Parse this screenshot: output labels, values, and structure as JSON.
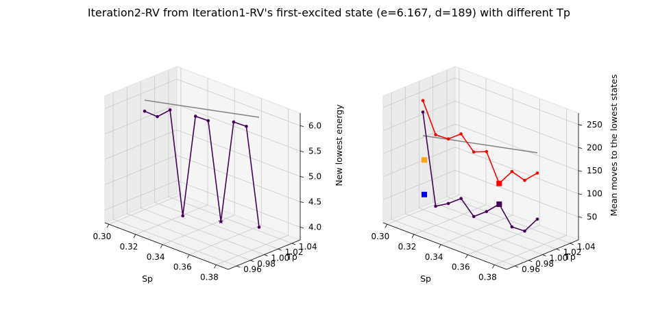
{
  "title": "Iteration2-RV from Iteration1-RV's first-excited state (e=6.167, d=189)  with different Tp",
  "chart_data": [
    {
      "type": "line",
      "projection": "3d",
      "xlabel": "Sp",
      "ylabel": "Tp",
      "zlabel": "New lowest energy",
      "x_ticks": [
        "0.30",
        "0.32",
        "0.34",
        "0.36",
        "0.38"
      ],
      "y_ticks": [
        "0.96",
        "0.98",
        "1.00",
        "1.02",
        "1.04"
      ],
      "z_ticks": [
        "4.0",
        "4.5",
        "5.0",
        "5.5",
        "6.0"
      ],
      "series": [
        {
          "color": "#440154",
          "x": [
            0.3,
            0.3,
            0.3,
            0.3,
            0.3,
            0.3,
            0.3,
            0.3,
            0.3,
            0.3
          ],
          "y": [
            0.96,
            0.97,
            0.98,
            0.99,
            1.0,
            1.01,
            1.02,
            1.03,
            1.04,
            1.05
          ],
          "z": [
            5.95,
            5.88,
            6.05,
            4.0,
            6.0,
            5.95,
            4.0,
            6.0,
            5.95,
            4.0
          ],
          "min_marker": {
            "index": 6,
            "shape": "star"
          }
        }
      ],
      "reference_line": {
        "color": "#808080",
        "x": [
          0.3,
          0.3
        ],
        "y": [
          0.96,
          1.05
        ],
        "z": [
          6.167,
          6.167
        ]
      }
    },
    {
      "type": "line",
      "projection": "3d",
      "xlabel": "Sp",
      "ylabel": "Tp",
      "zlabel": "Mean moves to the lowest states",
      "x_ticks": [
        "0.30",
        "0.32",
        "0.34",
        "0.36",
        "0.38"
      ],
      "y_ticks": [
        "0.96",
        "0.98",
        "1.00",
        "1.02",
        "1.04"
      ],
      "z_ticks": [
        "50",
        "100",
        "150",
        "200",
        "250"
      ],
      "series": [
        {
          "color": "#ff0000",
          "x": [
            0.3,
            0.3,
            0.3,
            0.3,
            0.3,
            0.3,
            0.3,
            0.3,
            0.3,
            0.3
          ],
          "y": [
            0.96,
            0.97,
            0.98,
            0.99,
            1.0,
            1.01,
            1.02,
            1.03,
            1.04,
            1.05
          ],
          "z": [
            265,
            195,
            190,
            205,
            170,
            175,
            110,
            140,
            125,
            145
          ],
          "marked_index": 6
        },
        {
          "color": "#440154",
          "x": [
            0.3,
            0.3,
            0.3,
            0.3,
            0.3,
            0.3,
            0.3,
            0.3,
            0.3,
            0.3
          ],
          "y": [
            0.96,
            0.97,
            0.98,
            0.99,
            1.0,
            1.01,
            1.02,
            1.03,
            1.04,
            1.05
          ],
          "z": [
            240,
            40,
            50,
            65,
            30,
            45,
            65,
            20,
            15,
            45
          ],
          "marked_index": 6
        }
      ],
      "reference_line": {
        "color": "#808080",
        "x": [
          0.3,
          0.3
        ],
        "y": [
          0.96,
          1.05
        ],
        "z": [
          189,
          189
        ]
      },
      "extra_points": [
        {
          "color": "#ffa500",
          "shape": "square",
          "x": 0.3,
          "y": 0.96,
          "z": 160
        },
        {
          "color": "#0000ff",
          "shape": "square",
          "x": 0.3,
          "y": 0.96,
          "z": 85
        }
      ]
    }
  ]
}
